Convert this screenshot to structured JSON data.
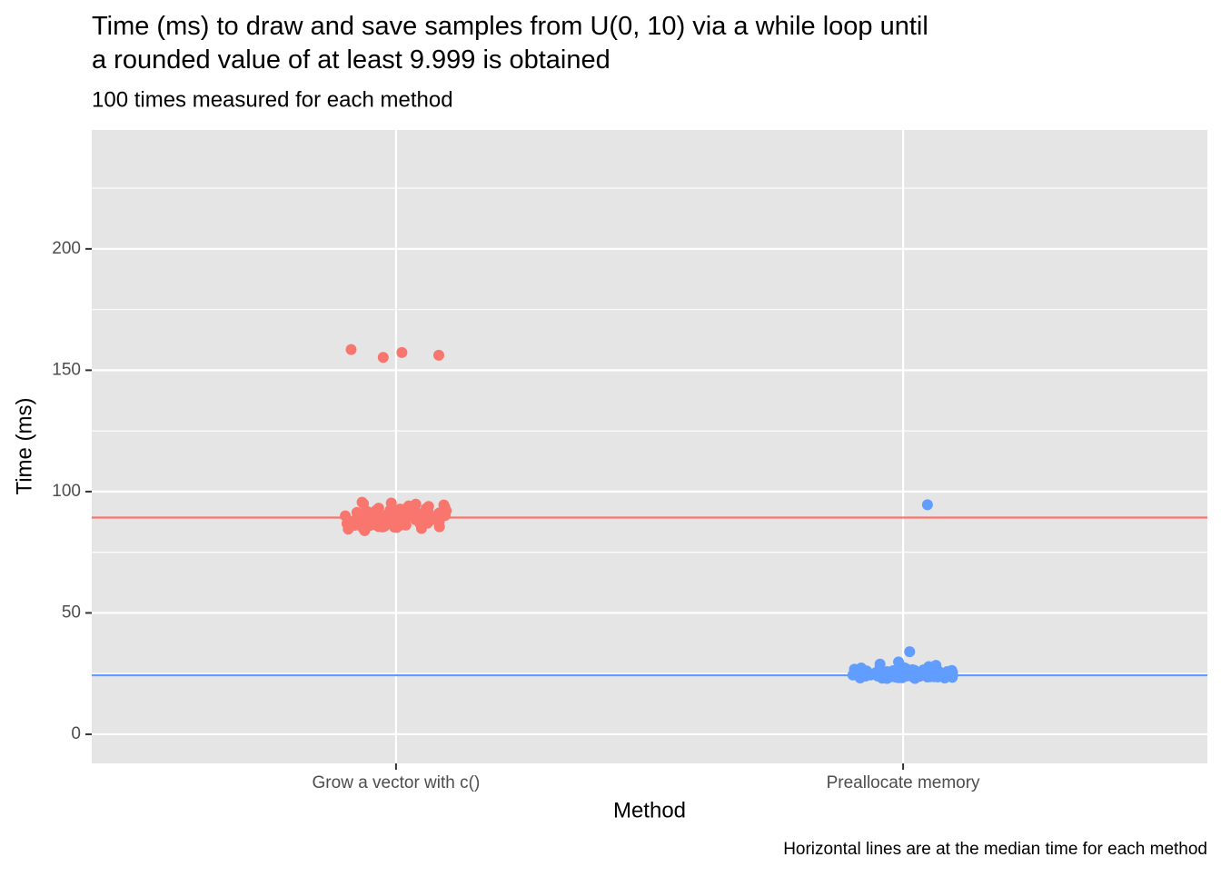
{
  "chart_data": {
    "type": "jitter",
    "title": "Time (ms) to draw and save samples from U(0, 10) via a while loop until\na rounded value of at least 9.999 is obtained",
    "subtitle": "100 times measured for each method",
    "x_label": "Method",
    "y_label": "Time (ms)",
    "caption": "Horizontal lines are at the median time for each method",
    "categories": [
      "Grow a vector with c()",
      "Preallocate memory"
    ],
    "colors": [
      "#f8766d",
      "#619cff"
    ],
    "medians": [
      89.3,
      24.3
    ],
    "values": [
      [
        156.2,
        158.5,
        157.3,
        155.3,
        95.3,
        94.1,
        95.6,
        93.2,
        92.8,
        94.5,
        93.9,
        95.0,
        92.1,
        91.7,
        92.4,
        91.2,
        90.8,
        91.5,
        90.3,
        90.6,
        91.9,
        90.1,
        89.9,
        90.4,
        89.7,
        89.5,
        90.0,
        89.8,
        89.6,
        90.2,
        91.0,
        89.4,
        90.7,
        91.3,
        92.6,
        93.5,
        90.9,
        89.5,
        91.1,
        92.0,
        90.5,
        89.9,
        91.8,
        94.8,
        93.0,
        89.4,
        90.3,
        89.6,
        91.4,
        92.2,
        89.3,
        89.2,
        89.0,
        88.8,
        88.5,
        88.3,
        88.1,
        87.9,
        87.6,
        87.4,
        87.2,
        87.0,
        86.8,
        86.6,
        86.4,
        86.2,
        86.0,
        85.8,
        85.6,
        85.4,
        85.2,
        85.0,
        84.5,
        83.9,
        88.9,
        88.7,
        88.4,
        88.2,
        87.8,
        87.5,
        87.3,
        86.9,
        86.5,
        86.1,
        85.7,
        85.3,
        86.3,
        87.1,
        88.0,
        88.6,
        89.1,
        85.9,
        86.7,
        87.7,
        84.8,
        85.5,
        86.4,
        87.6,
        88.3,
        89.0
      ],
      [
        94.6,
        34.0,
        29.8,
        28.9,
        28.4,
        27.9,
        27.5,
        27.2,
        27.0,
        26.8,
        26.6,
        26.4,
        26.2,
        26.0,
        25.8,
        25.6,
        25.5,
        25.4,
        25.3,
        25.2,
        25.1,
        25.0,
        24.9,
        24.8,
        24.7,
        24.6,
        24.5,
        24.5,
        24.4,
        24.4,
        24.3,
        24.3,
        24.3,
        24.2,
        24.2,
        24.1,
        24.1,
        24.0,
        24.0,
        23.9,
        23.9,
        23.8,
        23.8,
        23.7,
        23.7,
        23.6,
        23.6,
        23.5,
        23.5,
        23.4,
        23.4,
        23.3,
        23.3,
        23.2,
        23.2,
        23.1,
        23.0,
        23.0,
        24.3,
        24.6,
        24.9,
        25.2,
        25.7,
        26.1,
        26.5,
        27.1,
        24.2,
        24.0,
        23.8,
        23.6,
        23.9,
        24.1,
        24.4,
        24.8,
        25.1,
        25.5,
        25.9,
        26.3,
        26.9,
        27.3,
        24.3,
        24.5,
        24.7,
        23.7,
        23.5,
        23.4,
        24.0,
        24.2,
        24.6,
        25.0,
        25.4,
        25.8,
        24.1,
        23.9,
        23.6,
        24.4,
        24.8,
        23.3,
        24.0,
        24.2
      ]
    ],
    "ylim": [
      -12,
      249
    ],
    "yticks": [
      0,
      50,
      100,
      150,
      200
    ],
    "minor_yticks": [
      25,
      75,
      125,
      175,
      225
    ],
    "grid": true
  }
}
